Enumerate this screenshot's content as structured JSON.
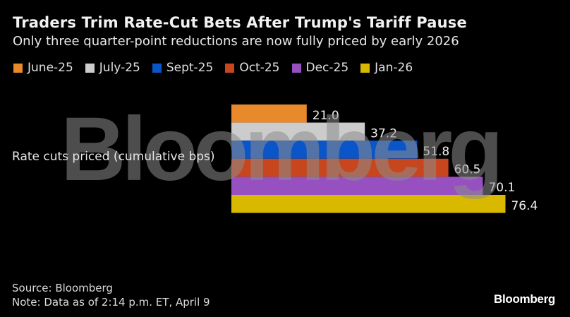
{
  "title": "Traders Trim Rate-Cut Bets After Trump's Tariff Pause",
  "subtitle": "Only three quarter-point reductions are now fully priced by early 2026",
  "watermark": "Bloomberg",
  "footer": {
    "source": "Source: Bloomberg",
    "note": "Note: Data as of 2:14 p.m. ET, April 9",
    "logo": "Bloomberg"
  },
  "chart_data": {
    "type": "bar",
    "orientation": "horizontal",
    "title": "Traders Trim Rate-Cut Bets After Trump's Tariff Pause",
    "subtitle": "Only three quarter-point reductions are now fully priced by early 2026",
    "categories": [
      "Rate cuts priced (cumulative bps)"
    ],
    "xlabel": "",
    "ylabel": "Rate cuts priced (cumulative bps)",
    "xlim": [
      0,
      80
    ],
    "grid": false,
    "legend_position": "top-left",
    "series": [
      {
        "name": "June-25",
        "values": [
          21.0
        ],
        "color": "#e8892b",
        "label": "21.0"
      },
      {
        "name": "July-25",
        "values": [
          37.2
        ],
        "color": "#cccccc",
        "label": "37.2"
      },
      {
        "name": "Sept-25",
        "values": [
          51.8
        ],
        "color": "#0a55c8",
        "label": "51.8"
      },
      {
        "name": "Oct-25",
        "values": [
          60.5
        ],
        "color": "#c8461e",
        "label": "60.5"
      },
      {
        "name": "Dec-25",
        "values": [
          70.1
        ],
        "color": "#9650c0",
        "label": "70.1"
      },
      {
        "name": "Jan-26",
        "values": [
          76.4
        ],
        "color": "#d9b800",
        "label": "76.4"
      }
    ]
  }
}
